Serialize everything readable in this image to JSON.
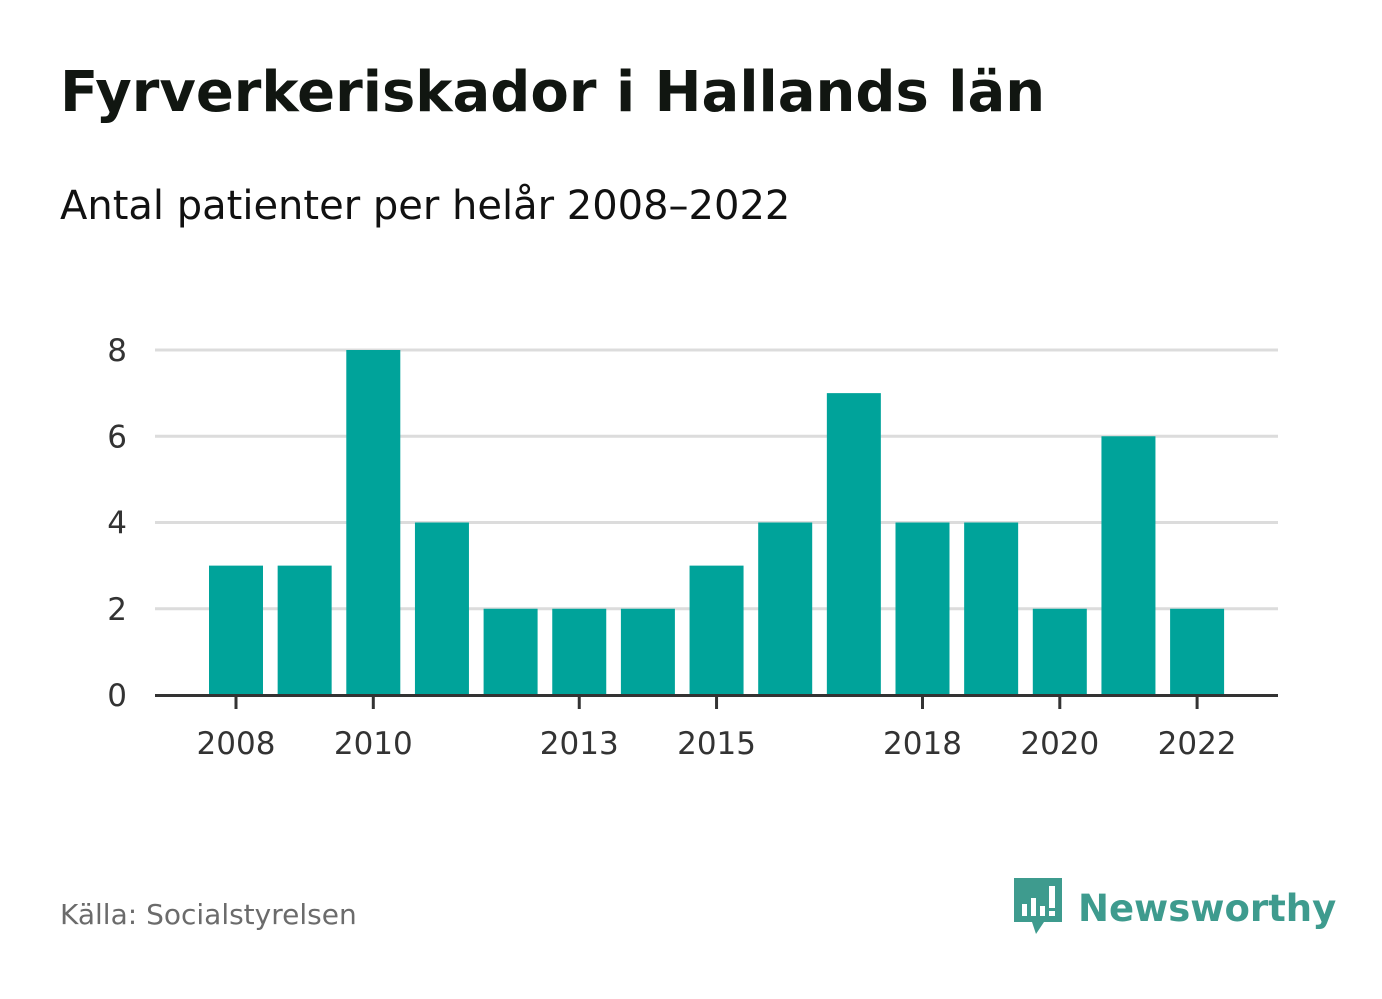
{
  "title": "Fyrverkeriskador i Hallands län",
  "subtitle": "Antal patienter per helår 2008–2022",
  "source": "Källa: Socialstyrelsen",
  "brand": {
    "name": "Newsworthy",
    "logo_icon": "newsworthy-logo-icon",
    "color": "#3e9b8e"
  },
  "colors": {
    "bar": "#00a39a",
    "gridline": "#dcdcdc",
    "axis": "#333333",
    "tick_text": "#333333"
  },
  "chart_data": {
    "type": "bar",
    "categories": [
      "2008",
      "2009",
      "2010",
      "2011",
      "2012",
      "2013",
      "2014",
      "2015",
      "2016",
      "2017",
      "2018",
      "2019",
      "2020",
      "2021",
      "2022"
    ],
    "values": [
      3,
      3,
      8,
      4,
      2,
      2,
      2,
      3,
      4,
      7,
      4,
      4,
      2,
      6,
      2
    ],
    "x_tick_labels": [
      "2008",
      "2010",
      "2013",
      "2015",
      "2018",
      "2020",
      "2022"
    ],
    "y_ticks": [
      0,
      2,
      4,
      6,
      8
    ],
    "ylim": [
      0,
      8
    ],
    "grid": true,
    "title": "Fyrverkeriskador i Hallands län",
    "subtitle": "Antal patienter per helår 2008–2022",
    "xlabel": "",
    "ylabel": ""
  }
}
